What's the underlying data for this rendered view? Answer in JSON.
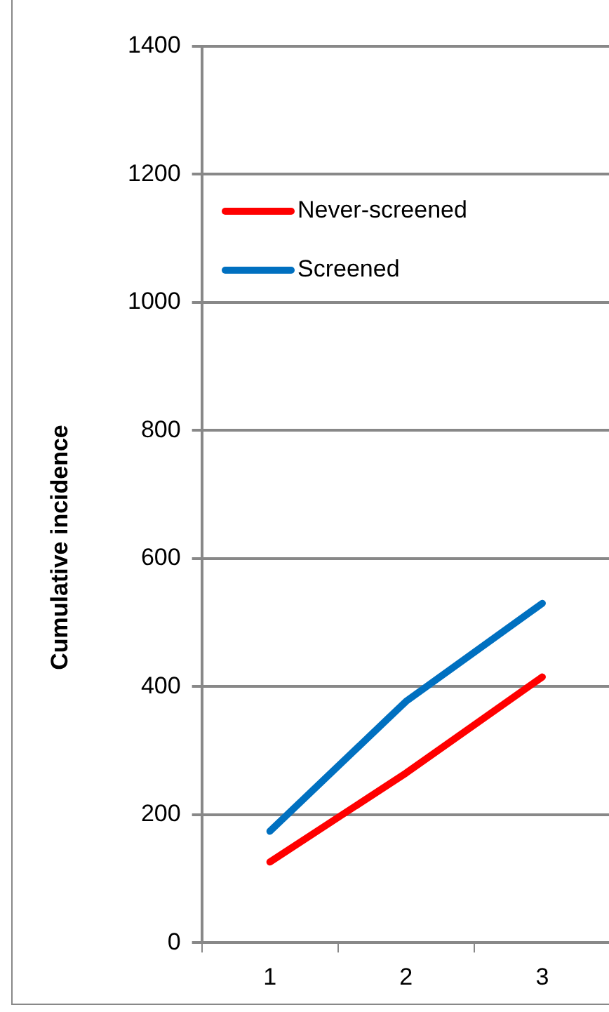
{
  "chart_data": {
    "type": "line",
    "ylabel": "Cumulative incidence",
    "categories": [
      "1",
      "2",
      "3"
    ],
    "series": [
      {
        "name": "Never-screened",
        "color": "#ff0000",
        "values": [
          126,
          265,
          415
        ]
      },
      {
        "name": "Screened",
        "color": "#0070c0",
        "values": [
          174,
          377,
          530
        ]
      }
    ],
    "ylim": [
      0,
      1400
    ],
    "yticks": [
      0,
      200,
      400,
      600,
      800,
      1000,
      1200,
      1400
    ],
    "grid": "y",
    "legend": "top left",
    "marker": "none",
    "line_style": "solid"
  }
}
